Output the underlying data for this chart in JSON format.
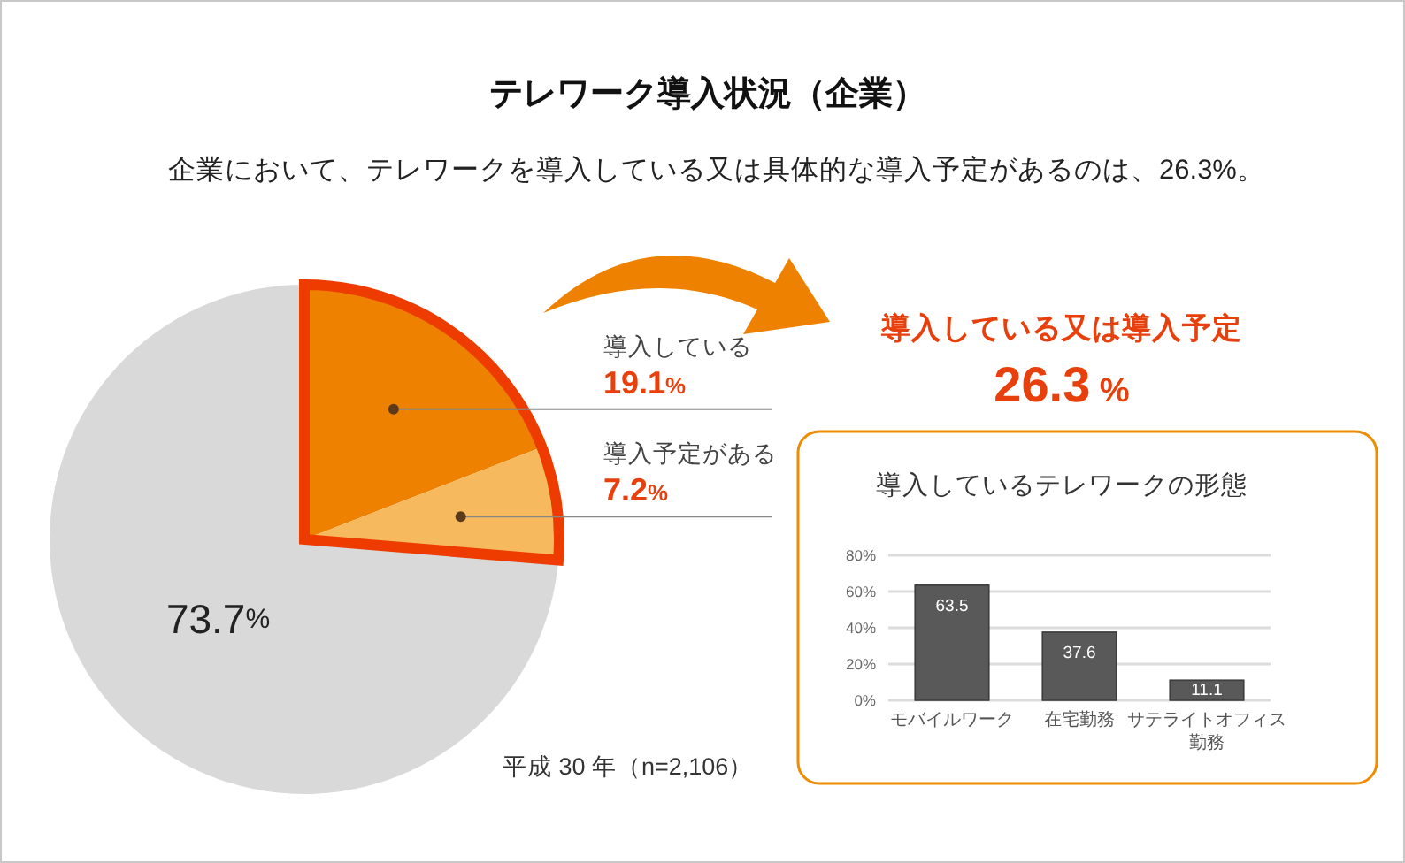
{
  "chart_data": [
    {
      "type": "pie",
      "title": "テレワーク導入状況（企業）",
      "subtitle": "企業において、テレワークを導入している又は具体的な導入予定があるのは、26.3%。",
      "categories": [
        "導入している",
        "導入予定がある",
        null
      ],
      "values": [
        19.1,
        7.2,
        73.7
      ],
      "colors": [
        "#ee8200",
        "#f6b95e",
        "#d9d9d9"
      ],
      "value_labels": [
        "19.1%",
        "7.2%",
        "73.7%"
      ],
      "annotations": [
        "導入している又は導入予定",
        "26.3 %",
        "平成 30 年（n=2,106）"
      ]
    },
    {
      "type": "bar",
      "title": "導入しているテレワークの形態",
      "categories": [
        "モバイルワーク",
        "在宅勤務",
        "サテライトオフィス勤務"
      ],
      "values": [
        63.5,
        37.6,
        11.1
      ],
      "color": "#595959",
      "ylim": [
        0,
        80
      ],
      "yticks": [
        {
          "value": 0,
          "label": "0%"
        },
        {
          "value": 20,
          "label": "20%"
        },
        {
          "value": 40,
          "label": "40%"
        },
        {
          "value": 60,
          "label": "60%"
        },
        {
          "value": 80,
          "label": "80%"
        }
      ],
      "grid": "y",
      "data_labels": true
    }
  ]
}
